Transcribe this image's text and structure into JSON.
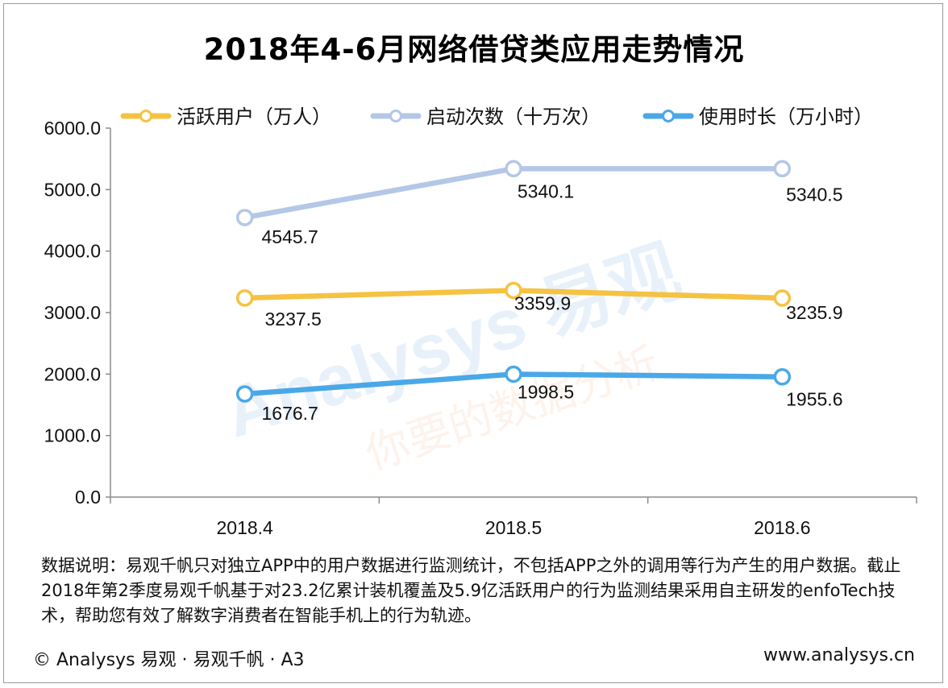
{
  "title": "2018年4-6月网络借贷类应用走势情况",
  "watermark": {
    "logo_text": "Analysys 易观",
    "slogan": "你要的数据分析"
  },
  "note": "数据说明：易观千帆只对独立APP中的用户数据进行监测统计，不包括APP之外的调用等行为产生的用户数据。截止2018年第2季度易观千帆基于对23.2亿累计装机覆盖及5.9亿活跃用户的行为监测结果采用自主研发的enfoTech技术，帮助您有效了解数字消费者在智能手机上的行为轨迹。",
  "footer": {
    "left": "© Analysys 易观 · 易观千帆 · A3",
    "right": "www.analysys.cn"
  },
  "chart_data": {
    "type": "line",
    "categories": [
      "2018.4",
      "2018.5",
      "2018.6"
    ],
    "ylim": [
      0,
      6000
    ],
    "yticks": [
      "0.0",
      "1000.0",
      "2000.0",
      "3000.0",
      "4000.0",
      "5000.0",
      "6000.0"
    ],
    "legend_position": "top",
    "grid": false,
    "series": [
      {
        "name": "活跃用户（万人）",
        "values": [
          3237.5,
          3359.9,
          3235.9
        ],
        "labels": [
          "3237.5",
          "3359.9",
          "3235.9"
        ],
        "color": "#F5C242"
      },
      {
        "name": "启动次数（十万次）",
        "values": [
          4545.7,
          5340.1,
          5340.5
        ],
        "labels": [
          "4545.7",
          "5340.1",
          "5340.5"
        ],
        "color": "#B4C7E7"
      },
      {
        "name": "使用时长（万小时）",
        "values": [
          1676.7,
          1998.5,
          1955.6
        ],
        "labels": [
          "1676.7",
          "1998.5",
          "1955.6"
        ],
        "color": "#4AA8E8"
      }
    ]
  }
}
